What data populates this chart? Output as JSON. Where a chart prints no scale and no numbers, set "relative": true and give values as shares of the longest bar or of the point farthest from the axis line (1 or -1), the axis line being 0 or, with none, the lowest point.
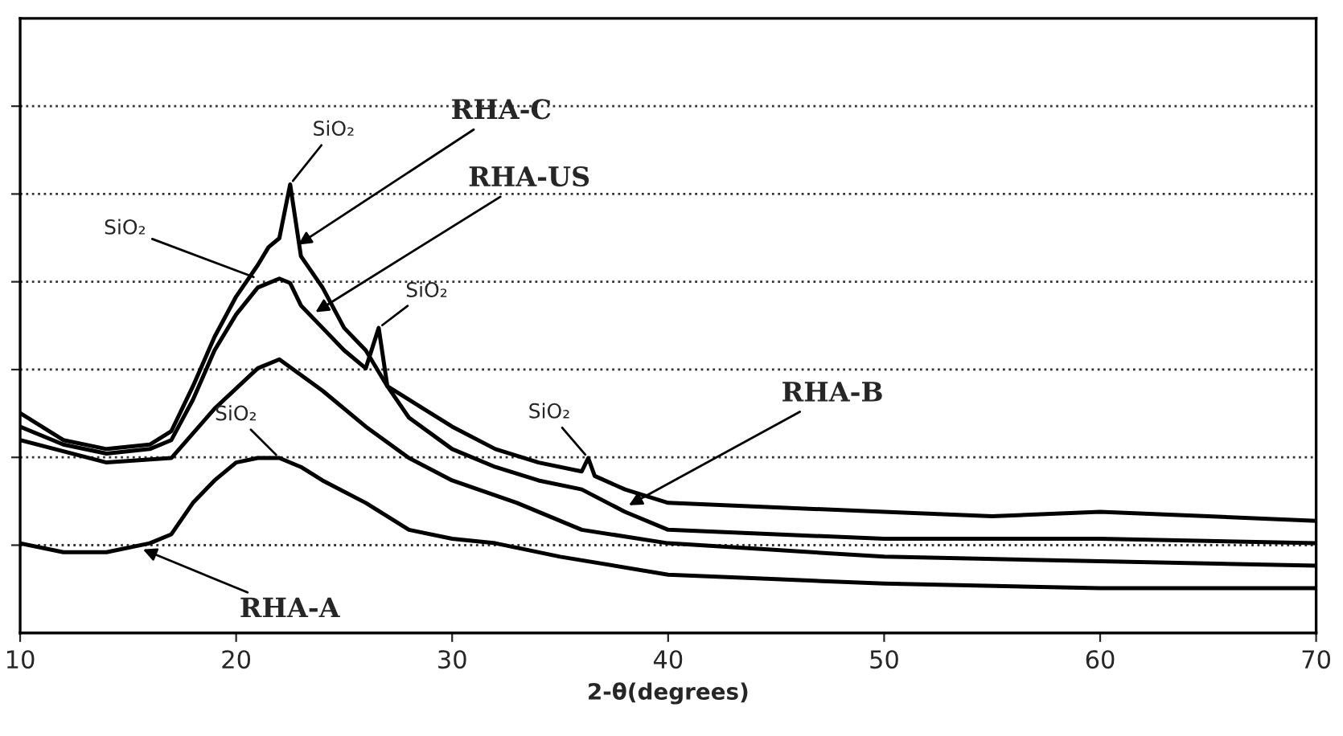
{
  "chart_data": {
    "type": "line",
    "relative": true,
    "xlabel": "2-θ(degrees)",
    "xlim": [
      10,
      70
    ],
    "xticks": [
      10,
      20,
      30,
      40,
      50,
      60,
      70
    ],
    "grid": "y",
    "tick_labels": "x",
    "legend": false,
    "series": [
      {
        "color": "#000000",
        "x": [
          10,
          12,
          14,
          16,
          17,
          18,
          19,
          20,
          21,
          21.5,
          22,
          22.5,
          23,
          24,
          25,
          26,
          27,
          28,
          30,
          32,
          34,
          36,
          36.3,
          36.6,
          38,
          40,
          45,
          50,
          55,
          60,
          65,
          70
        ],
        "values": [
          0.49,
          0.43,
          0.41,
          0.42,
          0.45,
          0.55,
          0.66,
          0.75,
          0.82,
          0.86,
          0.88,
          1.0,
          0.84,
          0.77,
          0.68,
          0.63,
          0.55,
          0.52,
          0.46,
          0.41,
          0.38,
          0.36,
          0.39,
          0.35,
          0.32,
          0.29,
          0.28,
          0.27,
          0.26,
          0.27,
          0.26,
          0.25
        ]
      },
      {
        "color": "#000000",
        "x": [
          10,
          12,
          14,
          16,
          17,
          18,
          19,
          20,
          21,
          22,
          22.5,
          23,
          24,
          25,
          26,
          26.6,
          27,
          28,
          30,
          32,
          34,
          36,
          38,
          40,
          50,
          60,
          70
        ],
        "values": [
          0.46,
          0.42,
          0.4,
          0.41,
          0.43,
          0.52,
          0.63,
          0.71,
          0.77,
          0.79,
          0.78,
          0.73,
          0.68,
          0.63,
          0.59,
          0.68,
          0.55,
          0.48,
          0.41,
          0.37,
          0.34,
          0.32,
          0.27,
          0.23,
          0.21,
          0.21,
          0.2
        ]
      },
      {
        "color": "#000000",
        "x": [
          10,
          14,
          17,
          19,
          21,
          22,
          24,
          26,
          28,
          30,
          33,
          36,
          40,
          50,
          60,
          70
        ],
        "values": [
          0.43,
          0.38,
          0.39,
          0.5,
          0.59,
          0.61,
          0.54,
          0.46,
          0.39,
          0.34,
          0.29,
          0.23,
          0.2,
          0.17,
          0.16,
          0.15
        ]
      },
      {
        "color": "#000000",
        "x": [
          10,
          12,
          14,
          16,
          17,
          18,
          19,
          20,
          21,
          22,
          23,
          24,
          26,
          28,
          30,
          32,
          35,
          40,
          45,
          50,
          60,
          70
        ],
        "values": [
          0.2,
          0.18,
          0.18,
          0.2,
          0.22,
          0.29,
          0.34,
          0.38,
          0.39,
          0.39,
          0.37,
          0.34,
          0.29,
          0.23,
          0.21,
          0.2,
          0.17,
          0.13,
          0.12,
          0.11,
          0.1,
          0.1
        ]
      }
    ],
    "annotations": [
      {
        "text": "SiO₂",
        "x": 22.5,
        "y": 1.0
      },
      {
        "text": "SiO₂",
        "x": 21,
        "y": 0.79
      },
      {
        "text": "SiO₂",
        "x": 26.6,
        "y": 0.68
      },
      {
        "text": "SiO₂",
        "x": 22,
        "y": 0.39
      },
      {
        "text": "SiO₂",
        "x": 36.3,
        "y": 0.39
      },
      {
        "text": "RHA-C",
        "x": 22.7,
        "y": 0.86
      },
      {
        "text": "RHA-US",
        "x": 23.5,
        "y": 0.71
      },
      {
        "text": "RHA-B",
        "x": 38,
        "y": 0.28
      },
      {
        "text": "RHA-A",
        "x": 15.5,
        "y": 0.19
      }
    ]
  }
}
